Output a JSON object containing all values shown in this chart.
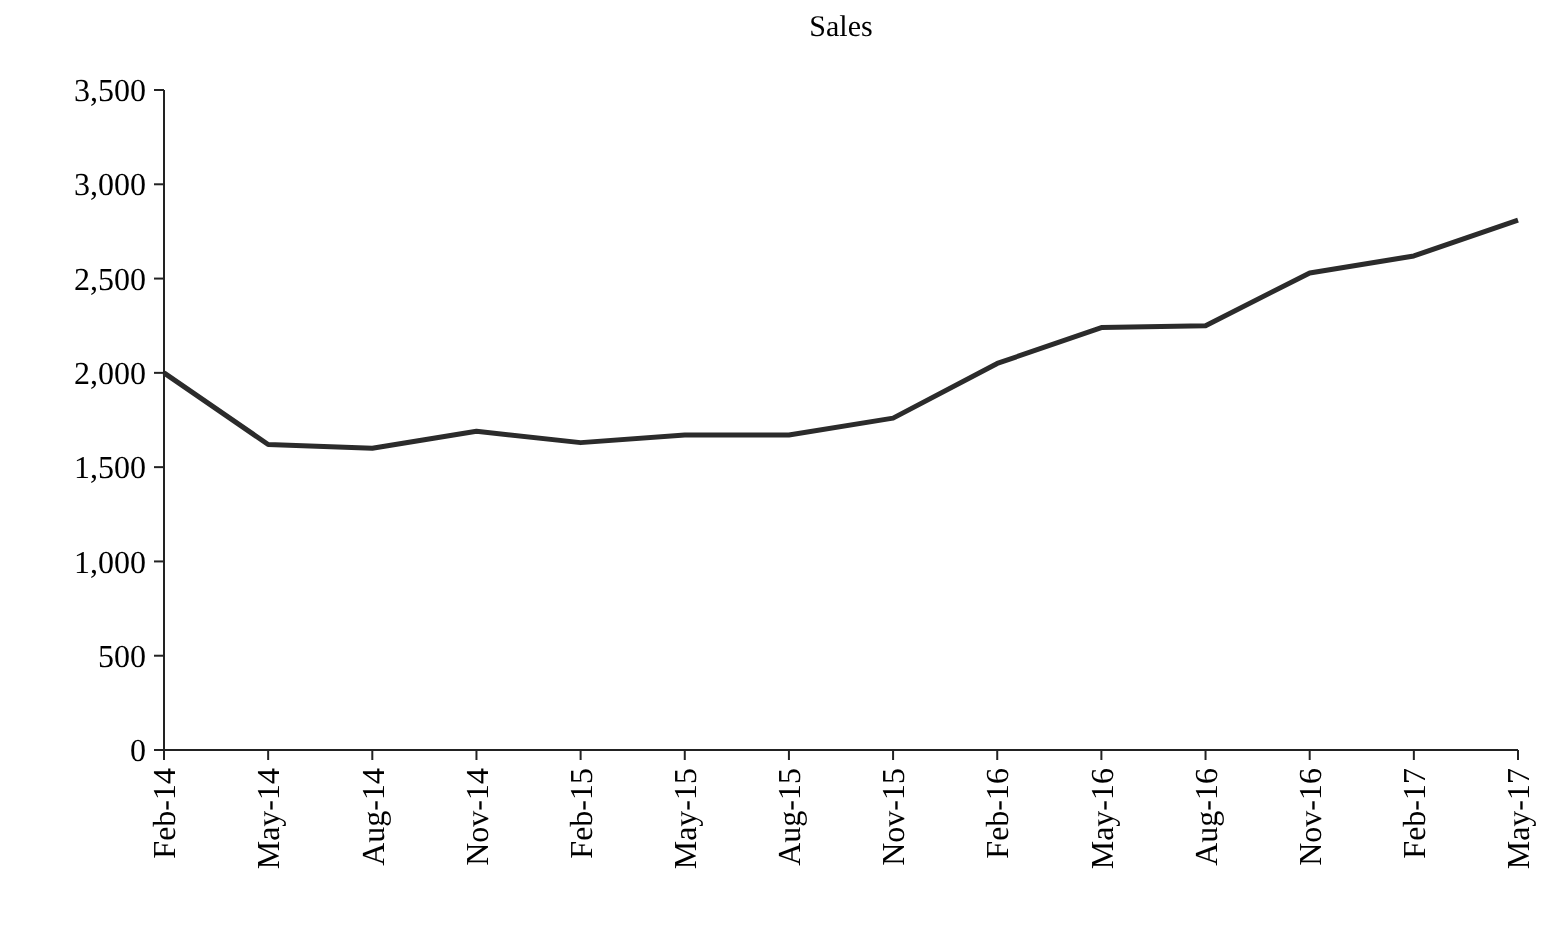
{
  "chart_data": {
    "type": "line",
    "title": "Sales",
    "categories": [
      "Feb-14",
      "May-14",
      "Aug-14",
      "Nov-14",
      "Feb-15",
      "May-15",
      "Aug-15",
      "Nov-15",
      "Feb-16",
      "May-16",
      "Aug-16",
      "Nov-16",
      "Feb-17",
      "May-17"
    ],
    "series": [
      {
        "color": "#2b2b2b",
        "values": [
          2000,
          1620,
          1600,
          1690,
          1630,
          1670,
          1670,
          1760,
          2050,
          2240,
          2250,
          2530,
          2620,
          2810
        ]
      }
    ],
    "ylim": [
      0,
      3500
    ],
    "yticks": [
      {
        "value": 0,
        "label": "0"
      },
      {
        "value": 500,
        "label": "500"
      },
      {
        "value": 1000,
        "label": "1,000"
      },
      {
        "value": 1500,
        "label": "1,500"
      },
      {
        "value": 2000,
        "label": "2,000"
      },
      {
        "value": 2500,
        "label": "2,500"
      },
      {
        "value": 3000,
        "label": "3,000"
      },
      {
        "value": 3500,
        "label": "3,500"
      }
    ],
    "grid": false,
    "marker": "none",
    "line_style": "solid"
  }
}
